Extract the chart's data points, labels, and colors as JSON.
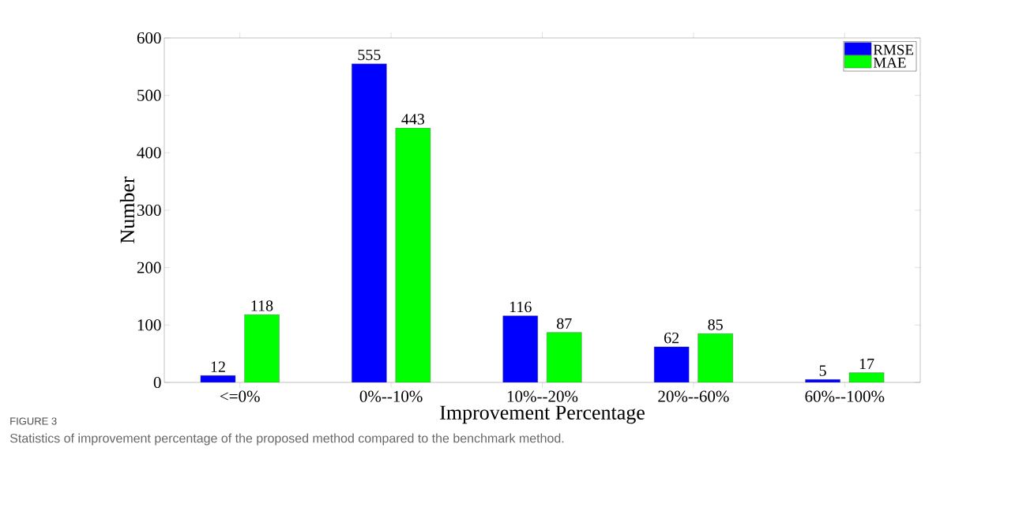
{
  "chart_data": {
    "type": "bar",
    "categories": [
      "<=0%",
      "0%--10%",
      "10%--20%",
      "20%--60%",
      "60%--100%"
    ],
    "series": [
      {
        "name": "RMSE",
        "color": "#0000ff",
        "values": [
          12,
          555,
          116,
          62,
          5
        ]
      },
      {
        "name": "MAE",
        "color": "#00ff00",
        "values": [
          118,
          443,
          87,
          85,
          17
        ]
      }
    ],
    "xlabel": "Improvement Percentage",
    "ylabel": "Number",
    "ylim": [
      0,
      600
    ],
    "yticks": [
      0,
      100,
      200,
      300,
      400,
      500,
      600
    ],
    "legend": "top right",
    "data_labels": true,
    "annotations": [
      "FIGURE 3",
      "Statistics of improvement percentage of the proposed method compared to the benchmark method."
    ]
  }
}
